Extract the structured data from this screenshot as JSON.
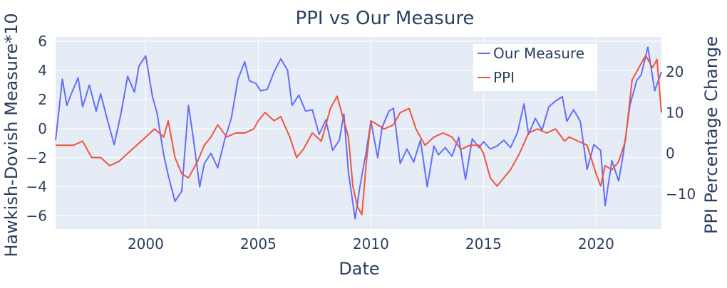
{
  "chart_data": {
    "type": "line",
    "title": "PPI vs Our Measure",
    "xlabel": "Date",
    "ylabel": "Hawkish-Dovish Measure*10",
    "y2label": "PPI Percentage Change",
    "legend_placement": "top-right",
    "grid": true,
    "background_color": "#e5ecf6",
    "x_range": [
      1996.0,
      2022.9
    ],
    "y_range": [
      -6.9,
      6.3
    ],
    "y2_range": [
      -18.5,
      28.5
    ],
    "x_ticks": [
      2000,
      2005,
      2010,
      2015,
      2020
    ],
    "y_ticks": [
      6,
      4,
      2,
      0,
      -2,
      -4,
      -6
    ],
    "y2_ticks": [
      20,
      10,
      0,
      -10
    ],
    "series": [
      {
        "name": "Our Measure",
        "axis": "y",
        "color": "#636efa",
        "x": [
          1996.0,
          1996.3,
          1996.5,
          1996.7,
          1997.0,
          1997.2,
          1997.5,
          1997.8,
          1998.0,
          1998.3,
          1998.6,
          1998.9,
          1999.2,
          1999.5,
          1999.7,
          2000.0,
          2000.3,
          2000.5,
          2000.8,
          2001.0,
          2001.3,
          2001.6,
          2001.9,
          2002.1,
          2002.4,
          2002.6,
          2002.9,
          2003.2,
          2003.5,
          2003.8,
          2004.1,
          2004.4,
          2004.6,
          2004.9,
          2005.1,
          2005.4,
          2005.7,
          2006.0,
          2006.3,
          2006.5,
          2006.8,
          2007.1,
          2007.4,
          2007.7,
          2008.0,
          2008.3,
          2008.6,
          2008.8,
          2009.0,
          2009.3,
          2009.5,
          2009.8,
          2010.0,
          2010.3,
          2010.5,
          2010.8,
          2011.0,
          2011.3,
          2011.6,
          2011.9,
          2012.2,
          2012.5,
          2012.8,
          2013.0,
          2013.3,
          2013.6,
          2013.9,
          2014.2,
          2014.5,
          2014.8,
          2015.0,
          2015.3,
          2015.6,
          2015.9,
          2016.2,
          2016.5,
          2016.8,
          2017.0,
          2017.3,
          2017.6,
          2017.9,
          2018.2,
          2018.5,
          2018.7,
          2019.0,
          2019.3,
          2019.6,
          2019.9,
          2020.2,
          2020.4,
          2020.7,
          2021.0,
          2021.2,
          2021.5,
          2021.8,
          2022.0,
          2022.3,
          2022.6,
          2022.9
        ],
        "values": [
          -0.8,
          3.4,
          1.6,
          2.4,
          3.5,
          1.5,
          3.0,
          1.2,
          2.4,
          0.6,
          -1.1,
          1.0,
          3.6,
          2.5,
          4.3,
          5.0,
          2.2,
          1.1,
          -1.8,
          -3.2,
          -5.0,
          -4.3,
          1.6,
          -0.5,
          -4.0,
          -2.4,
          -1.7,
          -2.7,
          -0.8,
          0.7,
          3.4,
          4.6,
          3.3,
          3.1,
          2.6,
          2.7,
          3.9,
          4.8,
          4.0,
          1.6,
          2.3,
          1.2,
          1.3,
          -0.4,
          0.6,
          -1.5,
          -0.8,
          1.0,
          -3.0,
          -6.2,
          -4.1,
          -1.5,
          0.5,
          -2.0,
          0.1,
          1.2,
          1.4,
          -2.4,
          -1.4,
          -2.3,
          -0.8,
          -4.0,
          -1.2,
          -1.8,
          -1.3,
          -1.9,
          -0.6,
          -3.5,
          -0.7,
          -1.3,
          -0.9,
          -1.4,
          -1.2,
          -0.8,
          -1.3,
          -0.3,
          1.7,
          -0.4,
          0.7,
          -0.1,
          1.5,
          1.9,
          2.2,
          0.5,
          1.3,
          0.5,
          -2.8,
          -1.1,
          -1.5,
          -5.3,
          -2.2,
          -3.6,
          -1.8,
          1.6,
          3.3,
          3.7,
          5.6,
          2.6,
          3.9
        ]
      },
      {
        "name": "PPI",
        "axis": "y2",
        "color": "#ef553b",
        "x": [
          1996.0,
          1996.4,
          1996.8,
          1997.2,
          1997.6,
          1998.0,
          1998.4,
          1998.8,
          1999.2,
          1999.6,
          2000.0,
          2000.4,
          2000.8,
          2001.0,
          2001.3,
          2001.6,
          2001.9,
          2002.3,
          2002.6,
          2002.9,
          2003.2,
          2003.6,
          2004.0,
          2004.4,
          2004.8,
          2005.0,
          2005.3,
          2005.7,
          2006.0,
          2006.4,
          2006.7,
          2007.0,
          2007.4,
          2007.8,
          2008.2,
          2008.5,
          2008.8,
          2009.0,
          2009.2,
          2009.4,
          2009.6,
          2009.8,
          2010.0,
          2010.3,
          2010.6,
          2011.0,
          2011.3,
          2011.7,
          2012.0,
          2012.4,
          2012.8,
          2013.2,
          2013.6,
          2014.0,
          2014.4,
          2014.8,
          2015.0,
          2015.3,
          2015.6,
          2015.9,
          2016.2,
          2016.6,
          2017.0,
          2017.4,
          2017.8,
          2018.2,
          2018.6,
          2018.8,
          2019.2,
          2019.6,
          2020.0,
          2020.2,
          2020.4,
          2020.7,
          2021.0,
          2021.3,
          2021.6,
          2021.9,
          2022.2,
          2022.5,
          2022.7,
          2022.9
        ],
        "values": [
          2,
          2,
          2,
          3,
          -1,
          -1,
          -3,
          -2,
          0,
          2,
          4,
          6,
          4,
          8,
          -1,
          -5,
          -6,
          -2,
          2,
          4,
          7,
          4,
          5,
          5,
          6,
          8,
          10,
          8,
          9,
          4,
          -1,
          1,
          5,
          3,
          11,
          14,
          8,
          4,
          -8,
          -13,
          -15,
          -2,
          8,
          7,
          6,
          7,
          10,
          11,
          6,
          2,
          4,
          5,
          4,
          1,
          2,
          2,
          0,
          -6,
          -8,
          -6,
          -4,
          0,
          5,
          6,
          5,
          6,
          3,
          4,
          3,
          2,
          -5,
          -8,
          -3,
          -4,
          -2,
          3,
          18,
          21,
          24,
          21,
          23,
          10
        ]
      }
    ]
  }
}
